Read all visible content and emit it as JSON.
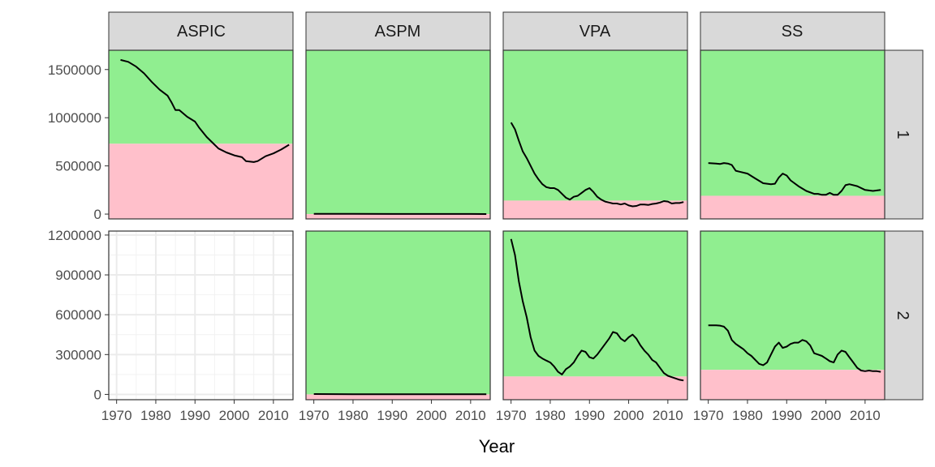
{
  "colors": {
    "above": "#90ee90",
    "below": "#ffc0cb",
    "line": "#000000",
    "strip": "#d9d9d9",
    "grid": "#ebebeb",
    "border": "#333333"
  },
  "chart_data": {
    "type": "line",
    "facet_layout": "grid",
    "xlabel": "Year",
    "ylabel": "",
    "columns": [
      "ASPIC",
      "ASPM",
      "VPA",
      "SS"
    ],
    "rows": [
      "1",
      "2"
    ],
    "x_ticks": [
      1970,
      1980,
      1990,
      2000,
      2010
    ],
    "xlim": [
      1968,
      2015
    ],
    "row_scales": [
      {
        "row": "1",
        "ylim": [
          -50000,
          1700000
        ],
        "y_ticks": [
          0,
          500000,
          1000000,
          1500000
        ],
        "y_tick_labels": [
          "0",
          "500000",
          "1000000",
          "1500000"
        ]
      },
      {
        "row": "2",
        "ylim": [
          -40000,
          1230000
        ],
        "y_ticks": [
          0,
          300000,
          600000,
          900000,
          1200000
        ],
        "y_tick_labels": [
          "0",
          "300000",
          "600000",
          "900000",
          "1200000"
        ]
      }
    ],
    "panels": [
      {
        "row": "1",
        "column": "ASPIC",
        "threshold": 730000,
        "empty": false,
        "x": [
          1971,
          1973,
          1975,
          1977,
          1979,
          1981,
          1983,
          1984,
          1985,
          1986,
          1988,
          1990,
          1991,
          1993,
          1995,
          1996,
          1998,
          2000,
          2002,
          2003,
          2005,
          2006,
          2008,
          2010,
          2012,
          2014
        ],
        "y": [
          1600000,
          1580000,
          1530000,
          1460000,
          1370000,
          1290000,
          1230000,
          1160000,
          1080000,
          1080000,
          1010000,
          960000,
          900000,
          800000,
          720000,
          680000,
          640000,
          610000,
          590000,
          550000,
          540000,
          550000,
          600000,
          630000,
          670000,
          720000
        ]
      },
      {
        "row": "1",
        "column": "ASPM",
        "threshold": 0,
        "empty": false,
        "x": [
          1970,
          1980,
          1990,
          2000,
          2010,
          2014
        ],
        "y": [
          3000,
          2000,
          1500,
          1200,
          1000,
          900
        ]
      },
      {
        "row": "1",
        "column": "VPA",
        "threshold": 140000,
        "empty": false,
        "x": [
          1970,
          1971,
          1972,
          1973,
          1974,
          1975,
          1976,
          1977,
          1978,
          1979,
          1980,
          1981,
          1982,
          1983,
          1984,
          1985,
          1986,
          1987,
          1988,
          1989,
          1990,
          1991,
          1992,
          1993,
          1994,
          1995,
          1996,
          1997,
          1998,
          1999,
          2000,
          2001,
          2002,
          2003,
          2004,
          2005,
          2006,
          2007,
          2008,
          2009,
          2010,
          2011,
          2012,
          2013,
          2014
        ],
        "y": [
          950000,
          880000,
          760000,
          650000,
          580000,
          500000,
          420000,
          360000,
          310000,
          280000,
          270000,
          270000,
          250000,
          210000,
          170000,
          150000,
          180000,
          190000,
          220000,
          250000,
          270000,
          230000,
          180000,
          150000,
          130000,
          120000,
          110000,
          110000,
          100000,
          110000,
          90000,
          80000,
          85000,
          100000,
          100000,
          95000,
          105000,
          110000,
          120000,
          135000,
          130000,
          110000,
          115000,
          115000,
          125000
        ]
      },
      {
        "row": "1",
        "column": "SS",
        "threshold": 190000,
        "empty": false,
        "x": [
          1970,
          1972,
          1973,
          1974,
          1975,
          1976,
          1977,
          1978,
          1980,
          1982,
          1984,
          1986,
          1987,
          1988,
          1989,
          1990,
          1991,
          1993,
          1995,
          1997,
          1998,
          1999,
          2000,
          2001,
          2002,
          2003,
          2004,
          2005,
          2006,
          2008,
          2010,
          2012,
          2014
        ],
        "y": [
          530000,
          525000,
          520000,
          530000,
          525000,
          510000,
          450000,
          440000,
          420000,
          370000,
          320000,
          310000,
          315000,
          380000,
          420000,
          400000,
          350000,
          290000,
          240000,
          210000,
          210000,
          200000,
          200000,
          220000,
          200000,
          200000,
          240000,
          300000,
          310000,
          290000,
          250000,
          240000,
          250000
        ]
      },
      {
        "row": "2",
        "column": "ASPIC",
        "threshold": null,
        "empty": true,
        "x": [],
        "y": []
      },
      {
        "row": "2",
        "column": "ASPM",
        "threshold": 0,
        "empty": false,
        "x": [
          1970,
          1980,
          1990,
          2000,
          2010,
          2014
        ],
        "y": [
          2500,
          1800,
          1500,
          1200,
          1000,
          900
        ]
      },
      {
        "row": "2",
        "column": "VPA",
        "threshold": 135000,
        "empty": false,
        "x": [
          1970,
          1971,
          1972,
          1973,
          1974,
          1975,
          1976,
          1977,
          1978,
          1979,
          1980,
          1981,
          1982,
          1983,
          1984,
          1985,
          1986,
          1987,
          1988,
          1989,
          1990,
          1991,
          1992,
          1993,
          1994,
          1995,
          1996,
          1997,
          1998,
          1999,
          2000,
          2001,
          2002,
          2003,
          2004,
          2005,
          2006,
          2007,
          2008,
          2009,
          2010,
          2011,
          2012,
          2013,
          2014
        ],
        "y": [
          1170000,
          1050000,
          850000,
          700000,
          580000,
          430000,
          330000,
          290000,
          270000,
          255000,
          240000,
          210000,
          170000,
          150000,
          190000,
          210000,
          240000,
          290000,
          330000,
          320000,
          280000,
          270000,
          300000,
          340000,
          380000,
          420000,
          470000,
          460000,
          420000,
          400000,
          430000,
          450000,
          420000,
          370000,
          330000,
          300000,
          260000,
          240000,
          200000,
          160000,
          140000,
          130000,
          120000,
          110000,
          105000
        ]
      },
      {
        "row": "2",
        "column": "SS",
        "threshold": 185000,
        "empty": false,
        "x": [
          1970,
          1972,
          1973,
          1974,
          1975,
          1976,
          1977,
          1978,
          1979,
          1980,
          1981,
          1982,
          1983,
          1984,
          1985,
          1986,
          1987,
          1988,
          1989,
          1990,
          1991,
          1992,
          1993,
          1994,
          1995,
          1996,
          1997,
          1998,
          1999,
          2000,
          2001,
          2002,
          2003,
          2004,
          2005,
          2006,
          2007,
          2008,
          2009,
          2010,
          2011,
          2012,
          2013,
          2014
        ],
        "y": [
          520000,
          520000,
          518000,
          510000,
          480000,
          410000,
          380000,
          360000,
          340000,
          310000,
          290000,
          260000,
          230000,
          220000,
          240000,
          300000,
          360000,
          390000,
          350000,
          360000,
          380000,
          390000,
          390000,
          410000,
          400000,
          370000,
          310000,
          300000,
          290000,
          270000,
          250000,
          240000,
          300000,
          330000,
          320000,
          280000,
          240000,
          200000,
          180000,
          175000,
          180000,
          175000,
          175000,
          170000
        ]
      }
    ]
  }
}
